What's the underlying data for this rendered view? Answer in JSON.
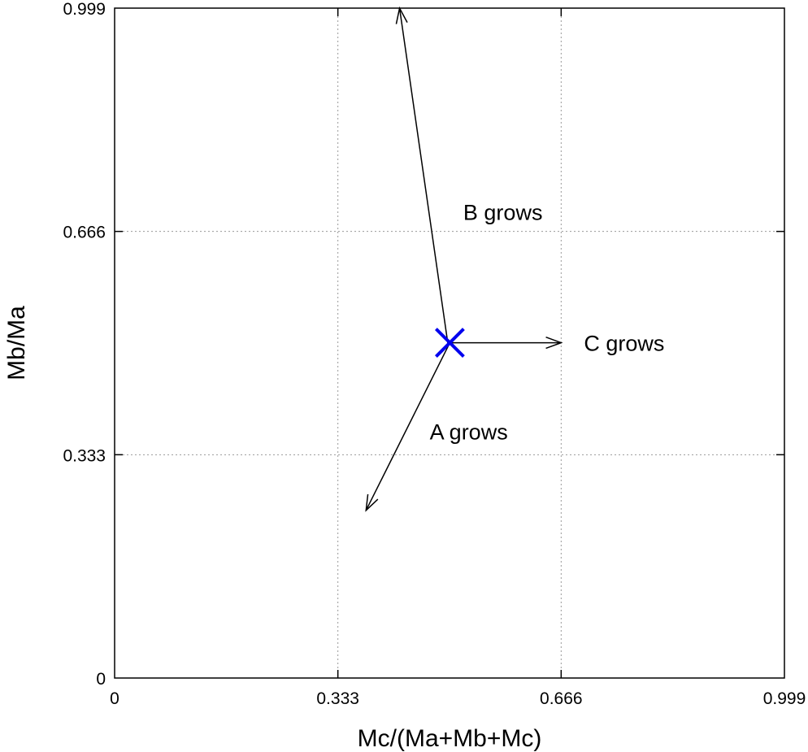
{
  "chart_data": {
    "type": "scatter",
    "title": "",
    "xlabel": "Mc/(Ma+Mb+Mc)",
    "ylabel": "Mb/Ma",
    "xlim": [
      0,
      0.999
    ],
    "ylim": [
      0,
      0.999
    ],
    "x_ticks": [
      {
        "value": 0,
        "label": "0"
      },
      {
        "value": 0.333,
        "label": "0.333"
      },
      {
        "value": 0.666,
        "label": "0.666"
      },
      {
        "value": 0.999,
        "label": "0.999"
      }
    ],
    "y_ticks": [
      {
        "value": 0,
        "label": "0"
      },
      {
        "value": 0.333,
        "label": "0.333"
      },
      {
        "value": 0.666,
        "label": "0.666"
      },
      {
        "value": 0.999,
        "label": "0.999"
      }
    ],
    "grid": true,
    "point": {
      "x": 0.5,
      "y": 0.5,
      "marker": "x",
      "color": "#0000ee"
    },
    "arrows": [
      {
        "name": "b-grows",
        "from": [
          0.497,
          0.499
        ],
        "to": [
          0.425,
          0.999
        ],
        "label": "B grows",
        "label_pos": [
          0.52,
          0.695
        ]
      },
      {
        "name": "c-grows",
        "from": [
          0.5,
          0.5
        ],
        "to": [
          0.666,
          0.5
        ],
        "label": "C grows",
        "label_pos": [
          0.7,
          0.5
        ]
      },
      {
        "name": "a-grows",
        "from": [
          0.5,
          0.5
        ],
        "to": [
          0.375,
          0.25
        ],
        "label": "A grows",
        "label_pos": [
          0.47,
          0.368
        ]
      }
    ]
  }
}
